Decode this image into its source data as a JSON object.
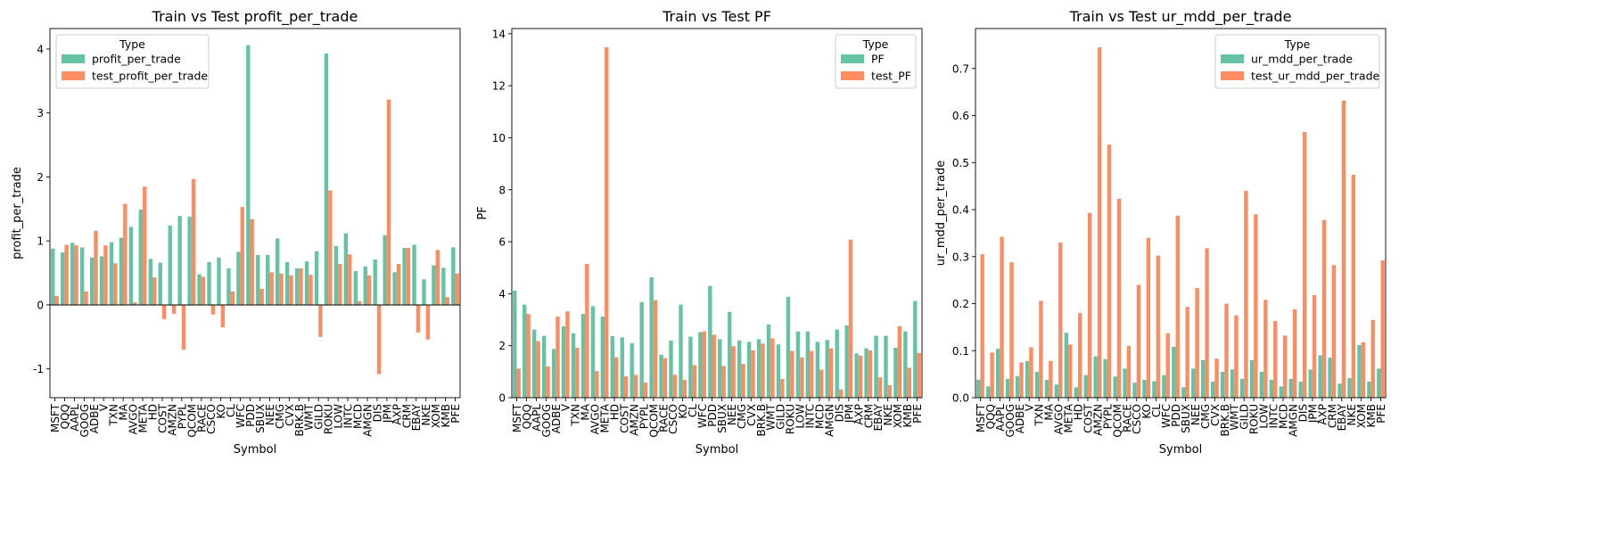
{
  "colors": {
    "train": "#66c2a5",
    "test": "#fc8d62"
  },
  "chart_data": [
    {
      "type": "bar",
      "title": "Train vs Test profit_per_trade",
      "xlabel": "Symbol",
      "ylabel": "profit_per_trade",
      "ylim": [
        -1.45,
        4.32
      ],
      "yticks": [
        -1,
        0,
        1,
        2,
        3,
        4
      ],
      "zero_line": true,
      "legend_position": "top-left",
      "legend_title": "Type",
      "categories": [
        "MSFT",
        "QQQ",
        "AAPL",
        "GOOG",
        "ADBE",
        "V",
        "TXN",
        "MA",
        "AVGO",
        "META",
        "HD",
        "COST",
        "AMZN",
        "PYPL",
        "QCOM",
        "RACE",
        "CSCO",
        "KO",
        "CL",
        "WFC",
        "PDD",
        "SBUX",
        "NEE",
        "CMG",
        "CVX",
        "BRK.B",
        "WMT",
        "GILD",
        "ROKU",
        "LOW",
        "INTC",
        "MCD",
        "AMGN",
        "DIS",
        "JPM",
        "AXP",
        "CRM",
        "EBAY",
        "NKE",
        "XOM",
        "KMB",
        "PFE"
      ],
      "series": [
        {
          "name": "profit_per_trade",
          "values": [
            0.88,
            0.82,
            0.97,
            0.9,
            0.74,
            0.76,
            0.98,
            1.05,
            1.22,
            1.49,
            0.72,
            0.66,
            1.24,
            1.39,
            1.38,
            0.48,
            0.67,
            0.74,
            0.57,
            0.83,
            4.06,
            0.78,
            0.78,
            1.04,
            0.67,
            0.57,
            0.68,
            0.84,
            3.93,
            0.92,
            1.12,
            0.53,
            0.6,
            0.71,
            1.09,
            0.51,
            0.89,
            0.94,
            0.4,
            0.62,
            0.58,
            0.9
          ]
        },
        {
          "name": "test_profit_per_trade",
          "values": [
            0.14,
            0.94,
            0.93,
            0.21,
            1.16,
            0.93,
            0.65,
            1.58,
            0.04,
            1.85,
            0.43,
            -0.22,
            -0.14,
            -0.7,
            1.97,
            0.44,
            -0.15,
            -0.35,
            0.21,
            1.53,
            1.34,
            0.25,
            0.51,
            0.49,
            0.46,
            0.57,
            0.47,
            -0.5,
            1.79,
            0.64,
            0.79,
            0.06,
            0.46,
            -1.08,
            3.21,
            0.64,
            0.89,
            -0.43,
            -0.54,
            0.86,
            0.12,
            0.49
          ]
        }
      ]
    },
    {
      "type": "bar",
      "title": "Train vs Test PF",
      "xlabel": "Symbol",
      "ylabel": "PF",
      "ylim": [
        0,
        14.2
      ],
      "yticks": [
        0,
        2,
        4,
        6,
        8,
        10,
        12,
        14
      ],
      "zero_line": false,
      "legend_position": "top-right",
      "legend_title": "Type",
      "categories": [
        "MSFT",
        "QQQ",
        "AAPL",
        "GOOG",
        "ADBE",
        "V",
        "TXN",
        "MA",
        "AVGO",
        "META",
        "HD",
        "COST",
        "AMZN",
        "PYPL",
        "QCOM",
        "RACE",
        "CSCO",
        "KO",
        "CL",
        "WFC",
        "PDD",
        "SBUX",
        "NEE",
        "CMG",
        "CVX",
        "BRK.B",
        "WMT",
        "GILD",
        "ROKU",
        "LOW",
        "INTC",
        "MCD",
        "AMGN",
        "DIS",
        "JPM",
        "AXP",
        "CRM",
        "EBAY",
        "NKE",
        "XOM",
        "KMB",
        "PFE"
      ],
      "series": [
        {
          "name": "PF",
          "values": [
            4.12,
            3.58,
            2.62,
            2.38,
            1.87,
            2.75,
            2.48,
            3.22,
            3.52,
            3.12,
            2.37,
            2.32,
            2.1,
            3.68,
            4.63,
            1.65,
            2.2,
            3.58,
            2.35,
            2.52,
            4.3,
            2.25,
            3.3,
            2.2,
            2.15,
            2.25,
            2.82,
            2.05,
            3.88,
            2.55,
            2.55,
            2.15,
            2.22,
            2.62,
            2.78,
            1.7,
            1.9,
            2.38,
            2.38,
            1.92,
            2.55,
            3.72
          ]
        },
        {
          "name": "test_PF",
          "values": [
            1.12,
            3.22,
            2.18,
            1.2,
            3.12,
            3.32,
            1.92,
            5.15,
            1.02,
            13.48,
            1.55,
            0.82,
            0.88,
            0.58,
            3.75,
            1.52,
            0.88,
            0.68,
            1.25,
            2.55,
            2.42,
            1.22,
            1.98,
            1.3,
            1.82,
            2.08,
            2.28,
            0.72,
            1.8,
            1.55,
            1.8,
            1.08,
            1.9,
            0.32,
            6.08,
            1.62,
            1.82,
            0.78,
            0.48,
            2.75,
            1.15,
            1.72
          ]
        }
      ]
    },
    {
      "type": "bar",
      "title": "Train vs Test ur_mdd_per_trade",
      "xlabel": "Symbol",
      "ylabel": "ur_mdd_per_trade",
      "ylim": [
        0,
        0.785
      ],
      "yticks": [
        0.0,
        0.1,
        0.2,
        0.3,
        0.4,
        0.5,
        0.6,
        0.7
      ],
      "zero_line": false,
      "legend_position": "top-right",
      "legend_title": "Type",
      "categories": [
        "MSFT",
        "QQQ",
        "AAPL",
        "GOOG",
        "ADBE",
        "V",
        "TXN",
        "MA",
        "AVGO",
        "META",
        "HD",
        "COST",
        "AMZN",
        "PYPL",
        "QCOM",
        "RACE",
        "CSCO",
        "KO",
        "CL",
        "WFC",
        "PDD",
        "SBUX",
        "NEE",
        "CMG",
        "CVX",
        "BRK.B",
        "WMT",
        "GILD",
        "ROKU",
        "LOW",
        "INTC",
        "MCD",
        "AMGN",
        "DIS",
        "JPM",
        "AXP",
        "CRM",
        "EBAY",
        "NKE",
        "XOM",
        "KMB",
        "PFE"
      ],
      "series": [
        {
          "name": "ur_mdd_per_trade",
          "values": [
            0.038,
            0.024,
            0.104,
            0.04,
            0.046,
            0.078,
            0.055,
            0.038,
            0.028,
            0.138,
            0.022,
            0.048,
            0.088,
            0.082,
            0.045,
            0.062,
            0.032,
            0.038,
            0.035,
            0.048,
            0.108,
            0.022,
            0.062,
            0.08,
            0.034,
            0.055,
            0.06,
            0.04,
            0.08,
            0.055,
            0.038,
            0.024,
            0.04,
            0.034,
            0.06,
            0.09,
            0.085,
            0.03,
            0.042,
            0.112,
            0.034,
            0.062
          ]
        },
        {
          "name": "test_ur_mdd_per_trade",
          "values": [
            0.305,
            0.096,
            0.342,
            0.288,
            0.075,
            0.107,
            0.206,
            0.078,
            0.33,
            0.113,
            0.18,
            0.393,
            0.745,
            0.538,
            0.423,
            0.11,
            0.24,
            0.34,
            0.302,
            0.137,
            0.387,
            0.193,
            0.233,
            0.318,
            0.083,
            0.2,
            0.175,
            0.44,
            0.39,
            0.208,
            0.163,
            0.132,
            0.188,
            0.565,
            0.218,
            0.378,
            0.282,
            0.632,
            0.474,
            0.118,
            0.165,
            0.292
          ]
        }
      ]
    }
  ]
}
